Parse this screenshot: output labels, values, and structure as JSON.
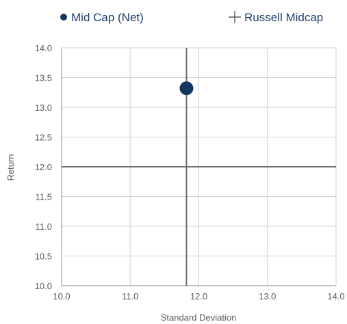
{
  "chart_data": {
    "type": "scatter",
    "xlabel": "Standard Deviation",
    "ylabel": "Return",
    "xlim": [
      10.0,
      14.0
    ],
    "ylim": [
      10.0,
      14.0
    ],
    "x_ticks": [
      "10.0",
      "11.0",
      "12.0",
      "13.0",
      "14.0"
    ],
    "y_ticks": [
      "10.0",
      "10.5",
      "11.0",
      "11.5",
      "12.0",
      "12.5",
      "13.0",
      "13.5",
      "14.0"
    ],
    "grid": true,
    "legend_position": "top",
    "series": [
      {
        "name": "Mid Cap (Net)",
        "marker": "circle",
        "color": "#13365f",
        "points": [
          {
            "x": 11.82,
            "y": 13.32
          }
        ]
      },
      {
        "name": "Russell Midcap",
        "marker": "crosshair",
        "color": "#595959",
        "points": [
          {
            "x": 11.82,
            "y": 12.0
          }
        ]
      }
    ],
    "colors": {
      "grid": "#d0d0d0",
      "axis": "#8c8c8c",
      "crosshair": "#6e6e6e",
      "text": "#595959"
    }
  }
}
